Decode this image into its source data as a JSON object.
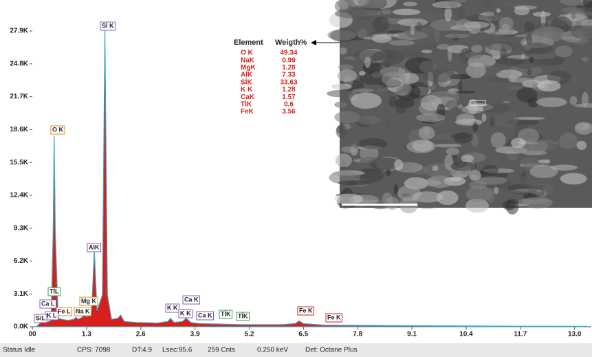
{
  "chart_data": {
    "type": "area",
    "x": [
      0.1,
      0.2,
      0.28,
      0.35,
      0.45,
      0.5,
      0.525,
      0.55,
      0.62,
      0.7,
      0.85,
      1.0,
      1.04,
      1.1,
      1.2,
      1.25,
      1.3,
      1.42,
      1.487,
      1.55,
      1.68,
      1.74,
      1.8,
      1.9,
      2.05,
      2.12,
      2.2,
      2.5,
      3.0,
      3.25,
      3.31,
      3.4,
      3.6,
      3.69,
      3.8,
      4.0,
      4.5,
      5.0,
      6.0,
      6.3,
      6.4,
      6.5,
      7.0,
      8.0,
      9.0,
      10.0,
      11.0,
      12.0,
      13.0,
      13.3
    ],
    "values": [
      0,
      400,
      900,
      400,
      600,
      9000,
      18000,
      9000,
      800,
      700,
      600,
      700,
      900,
      700,
      900,
      1300,
      900,
      1500,
      7200,
      1500,
      3000,
      28000,
      3000,
      700,
      800,
      1100,
      500,
      400,
      350,
      500,
      800,
      400,
      500,
      800,
      400,
      300,
      250,
      200,
      200,
      300,
      550,
      300,
      150,
      120,
      100,
      80,
      60,
      50,
      40,
      40
    ],
    "color": "#d81f1c",
    "line_color": "#3aa6bf",
    "xlim": [
      0,
      13.4
    ],
    "ylim": [
      0,
      30500
    ],
    "xticks": [
      {
        "value": 0,
        "label": "00"
      },
      1.3,
      2.6,
      3.9,
      5.2,
      6.5,
      7.8,
      9.1,
      10.4,
      11.7,
      {
        "value": 13,
        "label": "13.0"
      }
    ],
    "yticks": [
      {
        "value": 0,
        "label": "0.0K"
      },
      {
        "value": 3100,
        "label": "3.1K"
      },
      {
        "value": 6200,
        "label": "6.2K"
      },
      {
        "value": 9300,
        "label": "9.3K"
      },
      {
        "value": 12400,
        "label": "12.4K"
      },
      {
        "value": 15500,
        "label": "15.5K"
      },
      {
        "value": 18600,
        "label": "18.6K"
      },
      {
        "value": 21700,
        "label": "21.7K"
      },
      {
        "value": 24800,
        "label": "24.8K"
      },
      {
        "value": 27900,
        "label": "27.9K"
      }
    ],
    "annotations": [
      "Sİ K",
      "O K",
      "AlK",
      "TİL",
      "Ca L",
      "Mg K",
      "Na K",
      "Fe L",
      "K L",
      "SiL",
      "K K",
      "Ca K",
      "K K",
      "Ca K",
      "TİK",
      "TİK",
      "Fe K",
      "Fe K"
    ]
  },
  "element_table": {
    "header": [
      "Element",
      "Weigth%"
    ],
    "rows": [
      [
        "O K",
        49.34
      ],
      [
        "NaK",
        0.99
      ],
      [
        "MgK",
        1.28
      ],
      [
        "AlK",
        7.33
      ],
      [
        "SİK",
        33.63
      ],
      [
        "K K",
        1.28
      ],
      [
        "CaK",
        1.57
      ],
      [
        "TİK",
        0.6
      ],
      [
        "FeK",
        3.56
      ]
    ]
  },
  "status_bar": [
    "Status Idle",
    "CPS: 7098",
    "DT:4.9",
    "Lsec:95.6",
    "259 Cnts",
    "0.250 keV",
    "Det: Octane Plus"
  ]
}
